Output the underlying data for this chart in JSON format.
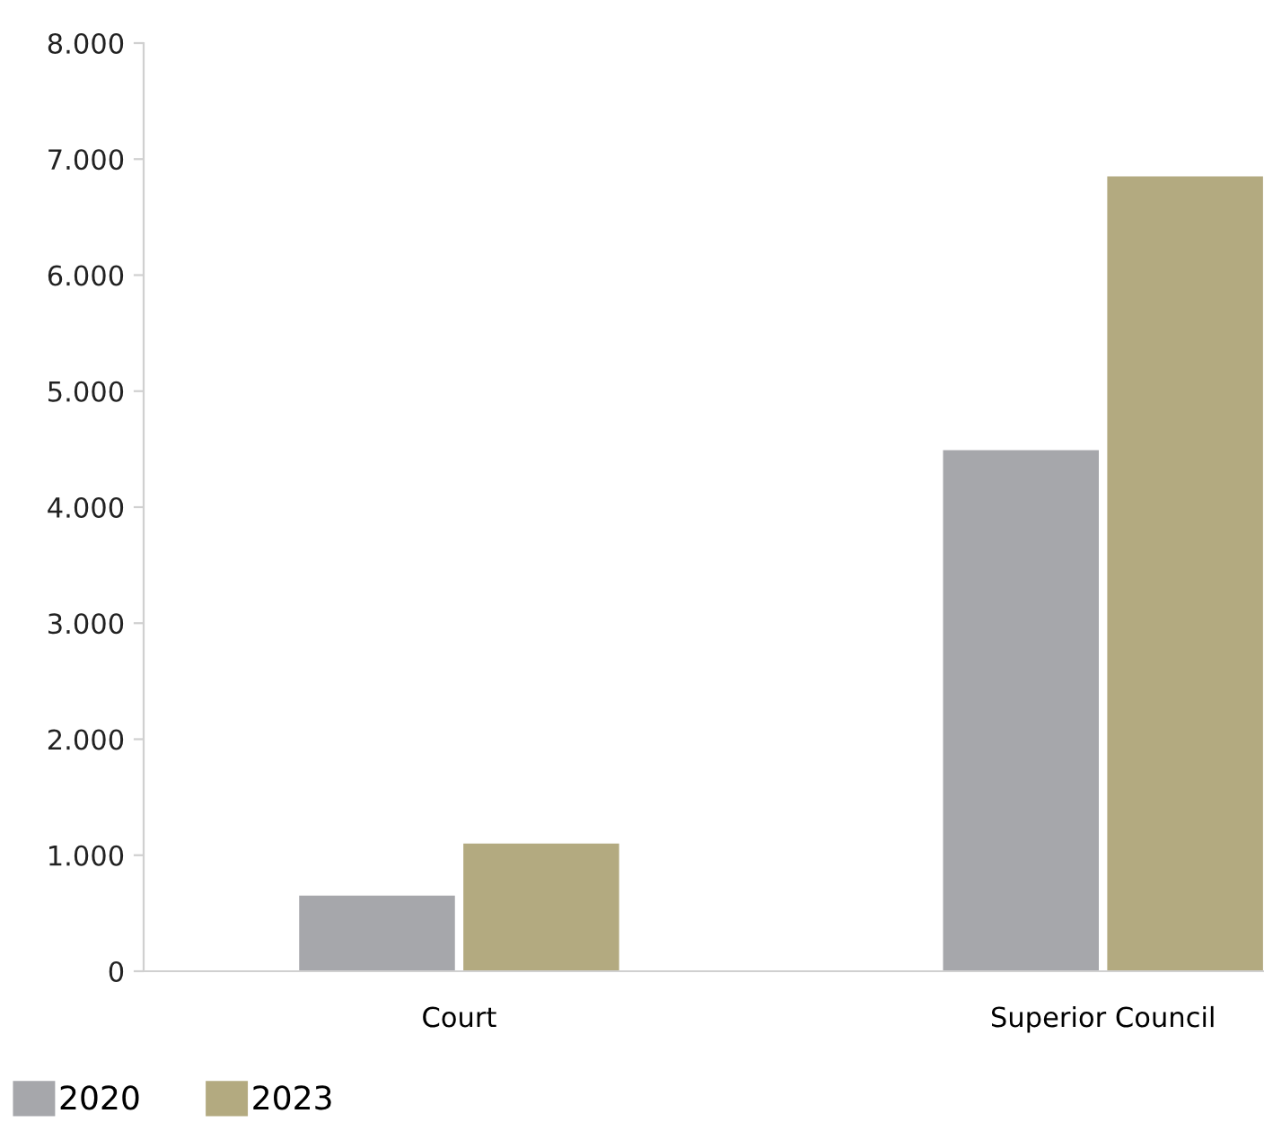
{
  "chart_data": {
    "type": "bar",
    "categories": [
      "Court",
      "Superior Council"
    ],
    "series": [
      {
        "name": "2020",
        "color": "#a6a7ab",
        "values": [
          660,
          4500
        ]
      },
      {
        "name": "2023",
        "color": "#b3aa80",
        "values": [
          1110,
          6860
        ]
      }
    ],
    "ylim": [
      0,
      8000
    ],
    "yticks": [
      {
        "value": 0,
        "label": "0"
      },
      {
        "value": 1000,
        "label": "1.000"
      },
      {
        "value": 2000,
        "label": "2.000"
      },
      {
        "value": 3000,
        "label": "3.000"
      },
      {
        "value": 4000,
        "label": "4.000"
      },
      {
        "value": 5000,
        "label": "5.000"
      },
      {
        "value": 6000,
        "label": "6.000"
      },
      {
        "value": 7000,
        "label": "7.000"
      },
      {
        "value": 8000,
        "label": "8.000"
      }
    ],
    "grid": false,
    "legend": "bottom left"
  }
}
